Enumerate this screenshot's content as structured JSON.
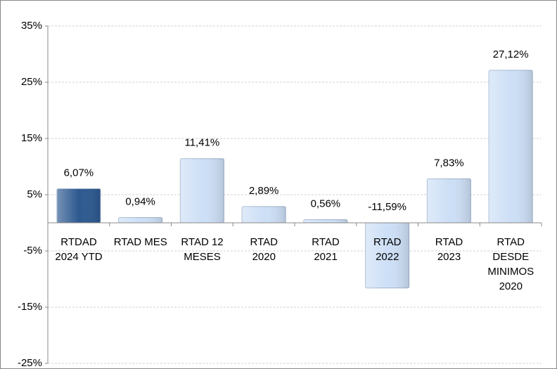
{
  "chart_data": {
    "type": "bar",
    "categories": [
      "RTDAD\n2024 YTD",
      "RTAD MES",
      "RTAD 12\nMESES",
      "RTAD\n2020",
      "RTAD\n2021",
      "RTAD\n2022",
      "RTAD\n2023",
      "RTAD\nDESDE\nMINIMOS\n2020"
    ],
    "values": [
      6.07,
      0.94,
      11.41,
      2.89,
      0.56,
      -11.59,
      7.83,
      27.12
    ],
    "value_labels": [
      "6,07%",
      "0,94%",
      "11,41%",
      "2,89%",
      "0,56%",
      "-11,59%",
      "7,83%",
      "27,12%"
    ],
    "colors": [
      "#2d5990",
      "#cddff6",
      "#cddff6",
      "#cddff6",
      "#cddff6",
      "#cddff6",
      "#cddff6",
      "#cddff6"
    ],
    "ylim": [
      -25,
      35
    ],
    "yticks": [
      {
        "value": -25,
        "label": "-25%"
      },
      {
        "value": -15,
        "label": "-15%"
      },
      {
        "value": -5,
        "label": "-5%"
      },
      {
        "value": 5,
        "label": "5%"
      },
      {
        "value": 15,
        "label": "15%"
      },
      {
        "value": 25,
        "label": "25%"
      },
      {
        "value": 35,
        "label": "35%"
      }
    ],
    "grid": true
  }
}
